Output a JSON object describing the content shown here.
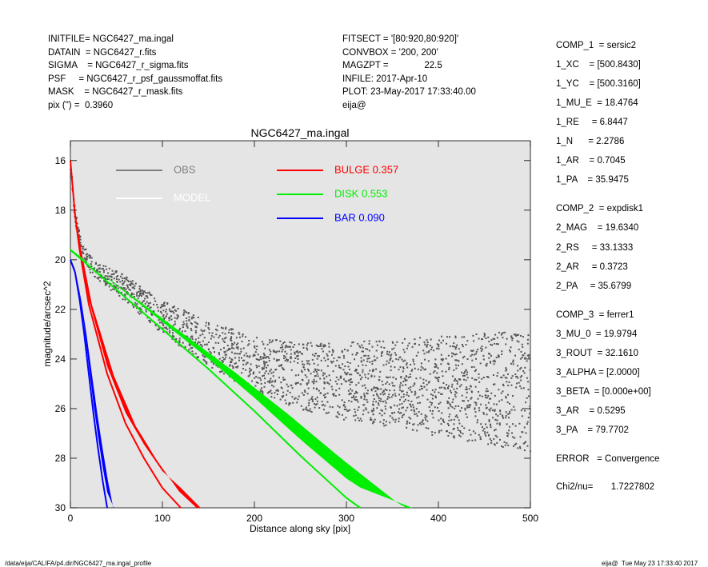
{
  "header_left": [
    "INITFILE= NGC6427_ma.ingal",
    "DATAIN  = NGC6427_r.fits",
    "SIGMA    = NGC6427_r_sigma.fits",
    "PSF     = NGC6427_r_psf_gaussmoffat.fits",
    "MASK    = NGC6427_r_mask.fits",
    "pix (\") =  0.3960"
  ],
  "header_mid": [
    "FITSECT = '[80:920,80:920]'",
    "CONVBOX = '200, 200'",
    "MAGZPT =              22.5",
    "INFILE: 2017-Apr-10",
    "PLOT: 23-May-2017 17:33:40.00",
    "eija@"
  ],
  "right_panel": [
    "COMP_1  = sersic2",
    "1_XC    = [500.8430]",
    "1_YC    = [500.3160]",
    "1_MU_E  = 18.4764",
    "1_RE     = 6.8447",
    "1_N      = 2.2786",
    "1_AR    = 0.7045",
    "1_PA    = 35.9475",
    "COMP_2  = expdisk1",
    "2_MAG    = 19.6340",
    "2_RS     = 33.1333",
    "2_AR     = 0.3723",
    "2_PA     = 35.6799",
    "COMP_3  = ferrer1",
    "3_MU_0  = 19.9794",
    "3_ROUT  = 32.1610",
    "3_ALPHA = [2.0000]",
    "3_BETA  = [0.000e+00]",
    "3_AR    = 0.5295",
    "3_PA    = 79.7702",
    "ERROR   = Convergence",
    "Chi2/nu=       1.7227802"
  ],
  "footer": {
    "left": "/data/eija/CALIFA/p4.dir/NGC6427_ma.ingal_profile",
    "right": "eija@  Tue May 23 17:33:40 2017"
  },
  "chart_data": {
    "type": "scatter",
    "title": "NGC6427_ma.ingal",
    "xlabel": "Distance along sky [pix]",
    "ylabel": "magnitude/arcsec^2",
    "xlim": [
      0,
      500
    ],
    "ylim": [
      30,
      15.2
    ],
    "y_inverted": true,
    "grid": false,
    "background": "#e5e5e5",
    "x_ticks": [
      0,
      100,
      200,
      300,
      400,
      500
    ],
    "y_ticks": [
      16,
      18,
      20,
      22,
      24,
      26,
      28,
      30
    ],
    "legend": [
      {
        "label": "OBS",
        "value": "",
        "color": "#7f7f7f"
      },
      {
        "label": "MODEL",
        "value": "",
        "color": "#ffffff"
      },
      {
        "label": "BULGE",
        "value": "0.357",
        "color": "#ff0000"
      },
      {
        "label": "DISK",
        "value": "0.553",
        "color": "#00ee00"
      },
      {
        "label": "BAR",
        "value": "0.090",
        "color": "#0000ff"
      }
    ],
    "series": [
      {
        "name": "OBS",
        "color": "#555555",
        "x": [
          0,
          5,
          10,
          20,
          30,
          50,
          75,
          100,
          150,
          200,
          250,
          300,
          350,
          400,
          450,
          500
        ],
        "y": [
          16.1,
          18.2,
          19.2,
          20.1,
          20.5,
          20.9,
          21.6,
          22.3,
          23.4,
          24.2,
          24.7,
          24.9,
          25.0,
          25.1,
          25.2,
          25.3
        ]
      },
      {
        "name": "BULGE",
        "color": "#ff0000",
        "x": [
          0,
          5,
          10,
          20,
          40,
          60,
          80,
          100,
          120
        ],
        "y": [
          16.0,
          18.2,
          19.6,
          21.8,
          24.6,
          26.6,
          28.0,
          29.2,
          30.0
        ]
      },
      {
        "name": "DISK",
        "color": "#00ee00",
        "x": [
          0,
          50,
          100,
          150,
          200,
          250,
          300,
          315
        ],
        "y": [
          19.6,
          21.2,
          22.8,
          24.4,
          26.1,
          27.9,
          29.6,
          30.0
        ]
      },
      {
        "name": "BAR",
        "color": "#0000ff",
        "x": [
          0,
          5,
          10,
          15,
          20,
          25,
          30,
          35,
          40
        ],
        "y": [
          20.0,
          20.5,
          21.6,
          23.0,
          24.6,
          26.2,
          27.6,
          28.9,
          30.0
        ]
      }
    ]
  }
}
